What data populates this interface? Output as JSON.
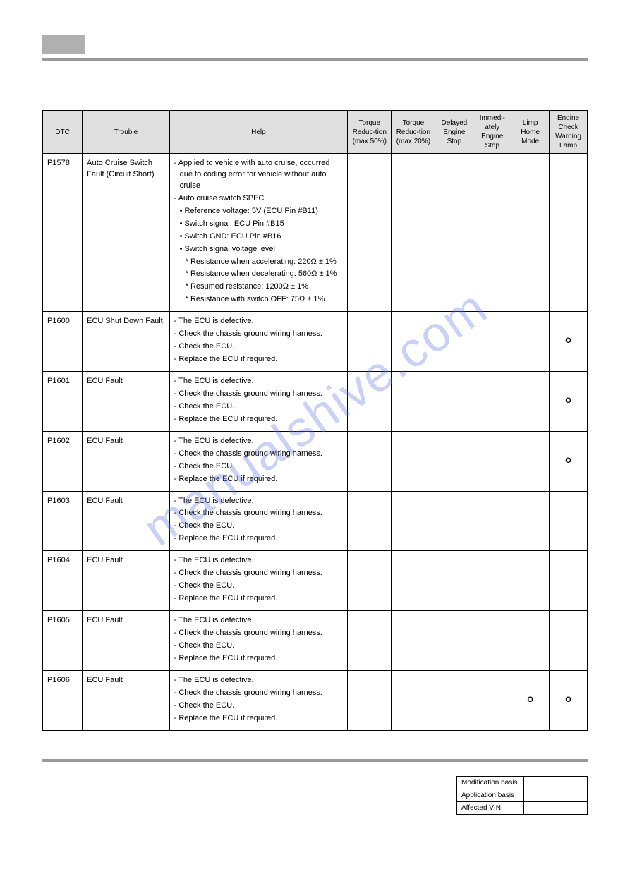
{
  "watermark_text": "manualshive.com",
  "colors": {
    "header_block": "#b0b0b0",
    "header_rule": "#9a9a9a",
    "th_bg": "#e0e0e0",
    "border": "#000000",
    "text": "#000000",
    "watermark": "#6b7de8"
  },
  "columns": [
    "DTC",
    "Trouble",
    "Help",
    "Torque Reduc-tion (max.50%)",
    "Torque Reduc-tion (max.20%)",
    "Delayed Engine Stop",
    "Immedi-ately Engine Stop",
    "Limp Home Mode",
    "Engine Check Warning Lamp"
  ],
  "rows": [
    {
      "dtc": "P1578",
      "trouble": "Auto Cruise Switch Fault (Circuit Short)",
      "help": [
        {
          "t": "- Applied to vehicle with auto cruise, occurred due to coding error for vehicle without auto cruise",
          "lvl": 0
        },
        {
          "t": "- Auto cruise switch SPEC",
          "lvl": 0
        },
        {
          "t": "• Reference voltage: 5V (ECU Pin #B11)",
          "lvl": 1
        },
        {
          "t": "• Switch signal: ECU Pin #B15",
          "lvl": 1
        },
        {
          "t": "• Switch GND: ECU Pin #B16",
          "lvl": 1
        },
        {
          "t": "• Switch signal voltage level",
          "lvl": 1
        },
        {
          "t": "* Resistance when accelerating: 220Ω ± 1%",
          "lvl": 2
        },
        {
          "t": "* Resistance when decelerating: 560Ω ± 1%",
          "lvl": 2
        },
        {
          "t": "* Resumed resistance: 1200Ω ± 1%",
          "lvl": 2
        },
        {
          "t": "* Resistance with switch OFF: 75Ω ± 1%",
          "lvl": 2
        }
      ],
      "marks": [
        "",
        "",
        "",
        "",
        "",
        ""
      ]
    },
    {
      "dtc": "P1600",
      "trouble": "ECU Shut Down Fault",
      "help": [
        {
          "t": "- The ECU is defective.",
          "lvl": 0
        },
        {
          "t": "- Check the chassis ground wiring harness.",
          "lvl": 0
        },
        {
          "t": "- Check the ECU.",
          "lvl": 0
        },
        {
          "t": "- Replace the ECU if required.",
          "lvl": 0
        }
      ],
      "marks": [
        "",
        "",
        "",
        "",
        "",
        "O"
      ]
    },
    {
      "dtc": "P1601",
      "trouble": "ECU Fault",
      "help": [
        {
          "t": "- The ECU is defective.",
          "lvl": 0
        },
        {
          "t": "- Check the chassis ground wiring harness.",
          "lvl": 0
        },
        {
          "t": "- Check the ECU.",
          "lvl": 0
        },
        {
          "t": "- Replace the ECU if required.",
          "lvl": 0
        }
      ],
      "marks": [
        "",
        "",
        "",
        "",
        "",
        "O"
      ]
    },
    {
      "dtc": "P1602",
      "trouble": "ECU Fault",
      "help": [
        {
          "t": "- The ECU is defective.",
          "lvl": 0
        },
        {
          "t": "- Check the chassis ground wiring harness.",
          "lvl": 0
        },
        {
          "t": "- Check the ECU.",
          "lvl": 0
        },
        {
          "t": "- Replace the ECU if required.",
          "lvl": 0
        }
      ],
      "marks": [
        "",
        "",
        "",
        "",
        "",
        "O"
      ]
    },
    {
      "dtc": "P1603",
      "trouble": "ECU Fault",
      "help": [
        {
          "t": "- The ECU is defective.",
          "lvl": 0
        },
        {
          "t": "- Check the chassis ground wiring harness.",
          "lvl": 0
        },
        {
          "t": "- Check the ECU.",
          "lvl": 0
        },
        {
          "t": "- Replace the ECU if required.",
          "lvl": 0
        }
      ],
      "marks": [
        "",
        "",
        "",
        "",
        "",
        ""
      ]
    },
    {
      "dtc": "P1604",
      "trouble": "ECU Fault",
      "help": [
        {
          "t": "- The ECU is defective.",
          "lvl": 0
        },
        {
          "t": "- Check the chassis ground wiring harness.",
          "lvl": 0
        },
        {
          "t": "- Check the ECU.",
          "lvl": 0
        },
        {
          "t": "- Replace the ECU if required.",
          "lvl": 0
        }
      ],
      "marks": [
        "",
        "",
        "",
        "",
        "",
        ""
      ]
    },
    {
      "dtc": "P1605",
      "trouble": "ECU Fault",
      "help": [
        {
          "t": "- The ECU is defective.",
          "lvl": 0
        },
        {
          "t": "- Check the chassis ground wiring harness.",
          "lvl": 0
        },
        {
          "t": "- Check the ECU.",
          "lvl": 0
        },
        {
          "t": "- Replace the ECU if required.",
          "lvl": 0
        }
      ],
      "marks": [
        "",
        "",
        "",
        "",
        "",
        ""
      ]
    },
    {
      "dtc": "P1606",
      "trouble": "ECU Fault",
      "help": [
        {
          "t": "- The ECU is defective.",
          "lvl": 0
        },
        {
          "t": "- Check the chassis ground wiring harness.",
          "lvl": 0
        },
        {
          "t": "- Check the ECU.",
          "lvl": 0
        },
        {
          "t": "- Replace the ECU if required.",
          "lvl": 0
        }
      ],
      "marks": [
        "",
        "",
        "",
        "",
        "O",
        "O"
      ]
    }
  ],
  "footer": {
    "rows": [
      {
        "label": "Modification basis",
        "value": ""
      },
      {
        "label": "Application basis",
        "value": ""
      },
      {
        "label": "Affected VIN",
        "value": ""
      }
    ]
  }
}
